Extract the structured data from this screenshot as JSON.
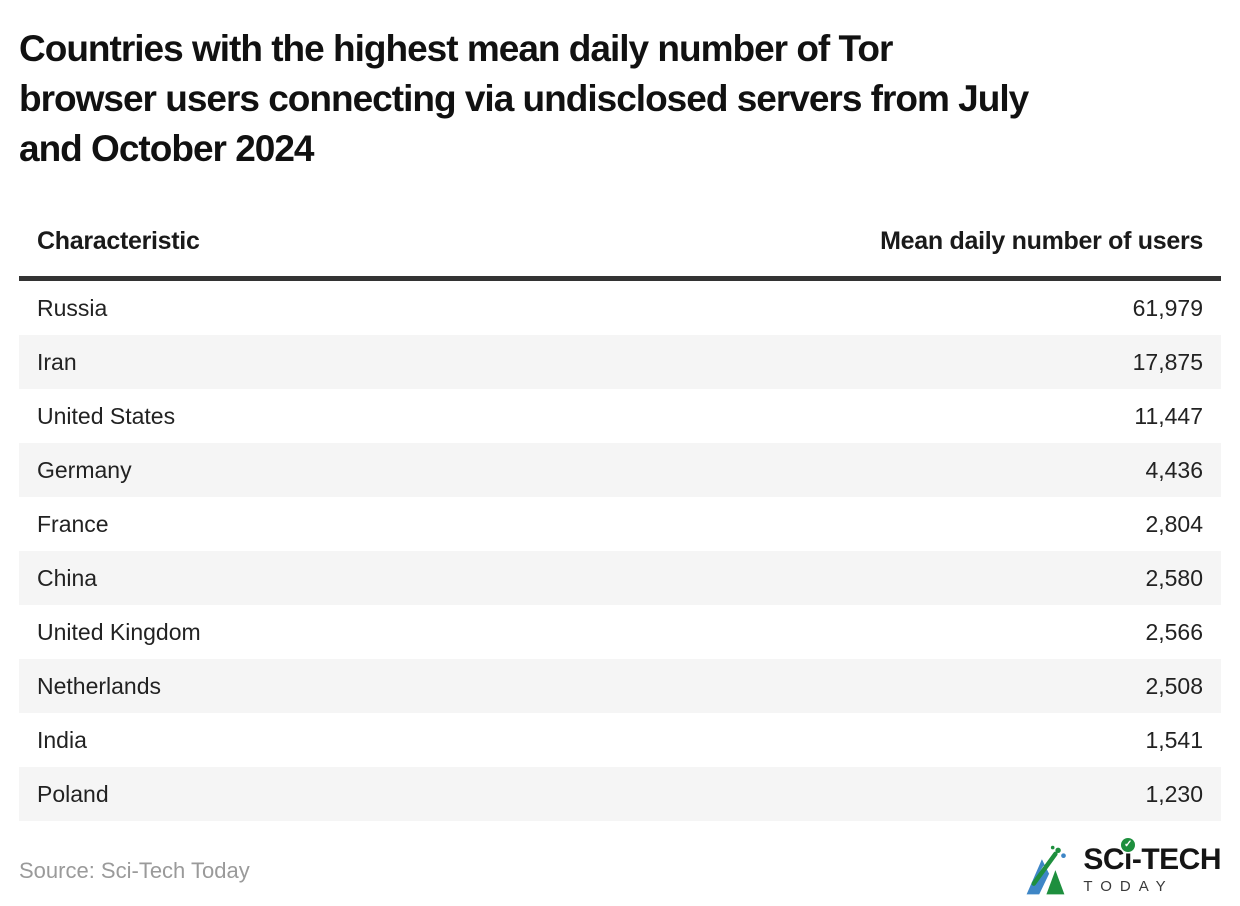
{
  "title_lines": [
    "Countries with the highest mean daily number of Tor",
    "browser users connecting via undisclosed servers from July",
    "and October 2024"
  ],
  "table": {
    "header": {
      "characteristic": "Characteristic",
      "value": "Mean daily number of users"
    },
    "rows": [
      {
        "label": "Russia",
        "value": "61,979"
      },
      {
        "label": "Iran",
        "value": "17,875"
      },
      {
        "label": "United States",
        "value": "11,447"
      },
      {
        "label": "Germany",
        "value": "4,436"
      },
      {
        "label": "France",
        "value": "2,804"
      },
      {
        "label": "China",
        "value": "2,580"
      },
      {
        "label": "United Kingdom",
        "value": "2,566"
      },
      {
        "label": "Netherlands",
        "value": "2,508"
      },
      {
        "label": "India",
        "value": "1,541"
      },
      {
        "label": "Poland",
        "value": "1,230"
      }
    ]
  },
  "footer": {
    "source": "Source: Sci-Tech Today",
    "logo": {
      "prefix": "SC",
      "i_char": "ı",
      "check": "✓",
      "suffix": "-TECH",
      "sub": "TODAY"
    }
  },
  "colors": {
    "row_alt_background": "#f5f5f5",
    "header_rule": "#333333",
    "title_text": "#111111",
    "body_text": "#222222",
    "source_text": "#9a9a9a",
    "logo_green": "#1e8f3e",
    "logo_blue": "#3e86c6"
  },
  "chart_data": {
    "type": "table",
    "title": "Countries with the highest mean daily number of Tor browser users connecting via undisclosed servers from July and October 2024",
    "columns": [
      "Characteristic",
      "Mean daily number of users"
    ],
    "categories": [
      "Russia",
      "Iran",
      "United States",
      "Germany",
      "France",
      "China",
      "United Kingdom",
      "Netherlands",
      "India",
      "Poland"
    ],
    "values": [
      61979,
      17875,
      11447,
      4436,
      2804,
      2580,
      2566,
      2508,
      1541,
      1230
    ],
    "source": "Sci-Tech Today",
    "layout": {
      "zebra_striping": true,
      "value_alignment": "right",
      "grid": false
    }
  }
}
